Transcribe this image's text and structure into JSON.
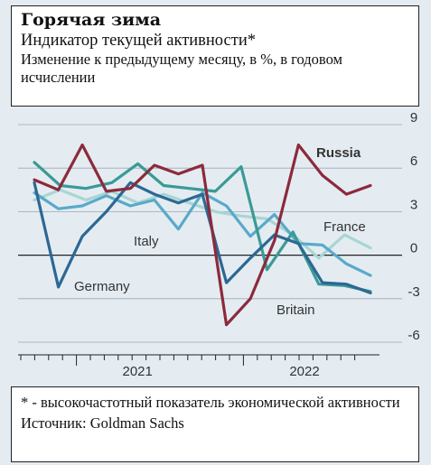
{
  "header": {
    "title": "Горячая зима",
    "subtitle": "Индикатор текущей активности*",
    "note": "Изменение к предыдущему месяцу, в %, в годовом исчислении"
  },
  "footer": {
    "footnote": "* - высокочастотный показатель экономической активности",
    "source": "Источник: Goldman Sachs"
  },
  "chart_data": {
    "type": "line",
    "x": [
      "2020-10",
      "2020-11",
      "2020-12",
      "2021-01",
      "2021-02",
      "2021-03",
      "2021-04",
      "2021-05",
      "2021-06",
      "2021-07",
      "2021-08",
      "2021-09",
      "2021-10",
      "2021-11",
      "2021-12",
      "2022-01",
      "2022-02",
      "2022-03",
      "2022-04",
      "2022-05",
      "2022-06",
      "2022-07",
      "2022-08",
      "2022-09",
      "2022-10"
    ],
    "x_tick_labels": [
      {
        "label": "2021",
        "at": "2021-06"
      },
      {
        "label": "2022",
        "at": "2022-06"
      }
    ],
    "ylim": [
      -6,
      9
    ],
    "yticks": [
      9,
      6,
      3,
      0,
      -3,
      -6
    ],
    "y_axis_side": "right",
    "grid": true,
    "series": [
      {
        "name": "Russia",
        "color": "#8c2a3c",
        "label_bold": true,
        "values": [
          5.2,
          4.5,
          7.6,
          4.4,
          4.6,
          6.2,
          5.6,
          6.2,
          null,
          null,
          null,
          -4.8,
          -3.0,
          1.0,
          7.6,
          5.5,
          4.2,
          4.8,
          null,
          null,
          null,
          null,
          null,
          null,
          null
        ]
      },
      {
        "name": "Germany",
        "color": "#2c6894",
        "values": [
          5.0,
          -2.2,
          1.3,
          3.0,
          5.0,
          4.2,
          3.6,
          4.2,
          null,
          null,
          null,
          -1.9,
          -0.2,
          1.4,
          0.8,
          -1.9,
          -2.0,
          -2.6,
          null,
          null,
          null,
          null,
          null,
          null,
          null
        ]
      },
      {
        "name": "Britain",
        "color": "#3a9a96",
        "values": [
          6.4,
          4.8,
          4.6,
          5.0,
          6.3,
          4.8,
          4.6,
          4.4,
          6.1,
          -1.0,
          1.6,
          -2.0,
          -2.1,
          -2.5,
          null,
          null,
          null,
          null,
          null,
          null,
          null,
          null,
          null,
          null,
          null
        ]
      },
      {
        "name": "Italy",
        "color": "#5aa9c9",
        "values": [
          4.3,
          3.2,
          3.4,
          4.1,
          3.4,
          3.8,
          1.8,
          4.3,
          3.4,
          1.3,
          2.8,
          0.8,
          0.7,
          -0.6,
          -1.4,
          null,
          null,
          null,
          null,
          null,
          null,
          null,
          null,
          null,
          null
        ]
      },
      {
        "name": "France",
        "color": "#a8d6d3",
        "values": [
          3.8,
          4.5,
          3.8,
          4.4,
          3.6,
          4.2,
          3.6,
          3.0,
          2.7,
          2.5,
          1.4,
          -0.2,
          1.4,
          0.5,
          null,
          null,
          null,
          null,
          null,
          null,
          null,
          null,
          null,
          null,
          null
        ]
      }
    ]
  }
}
